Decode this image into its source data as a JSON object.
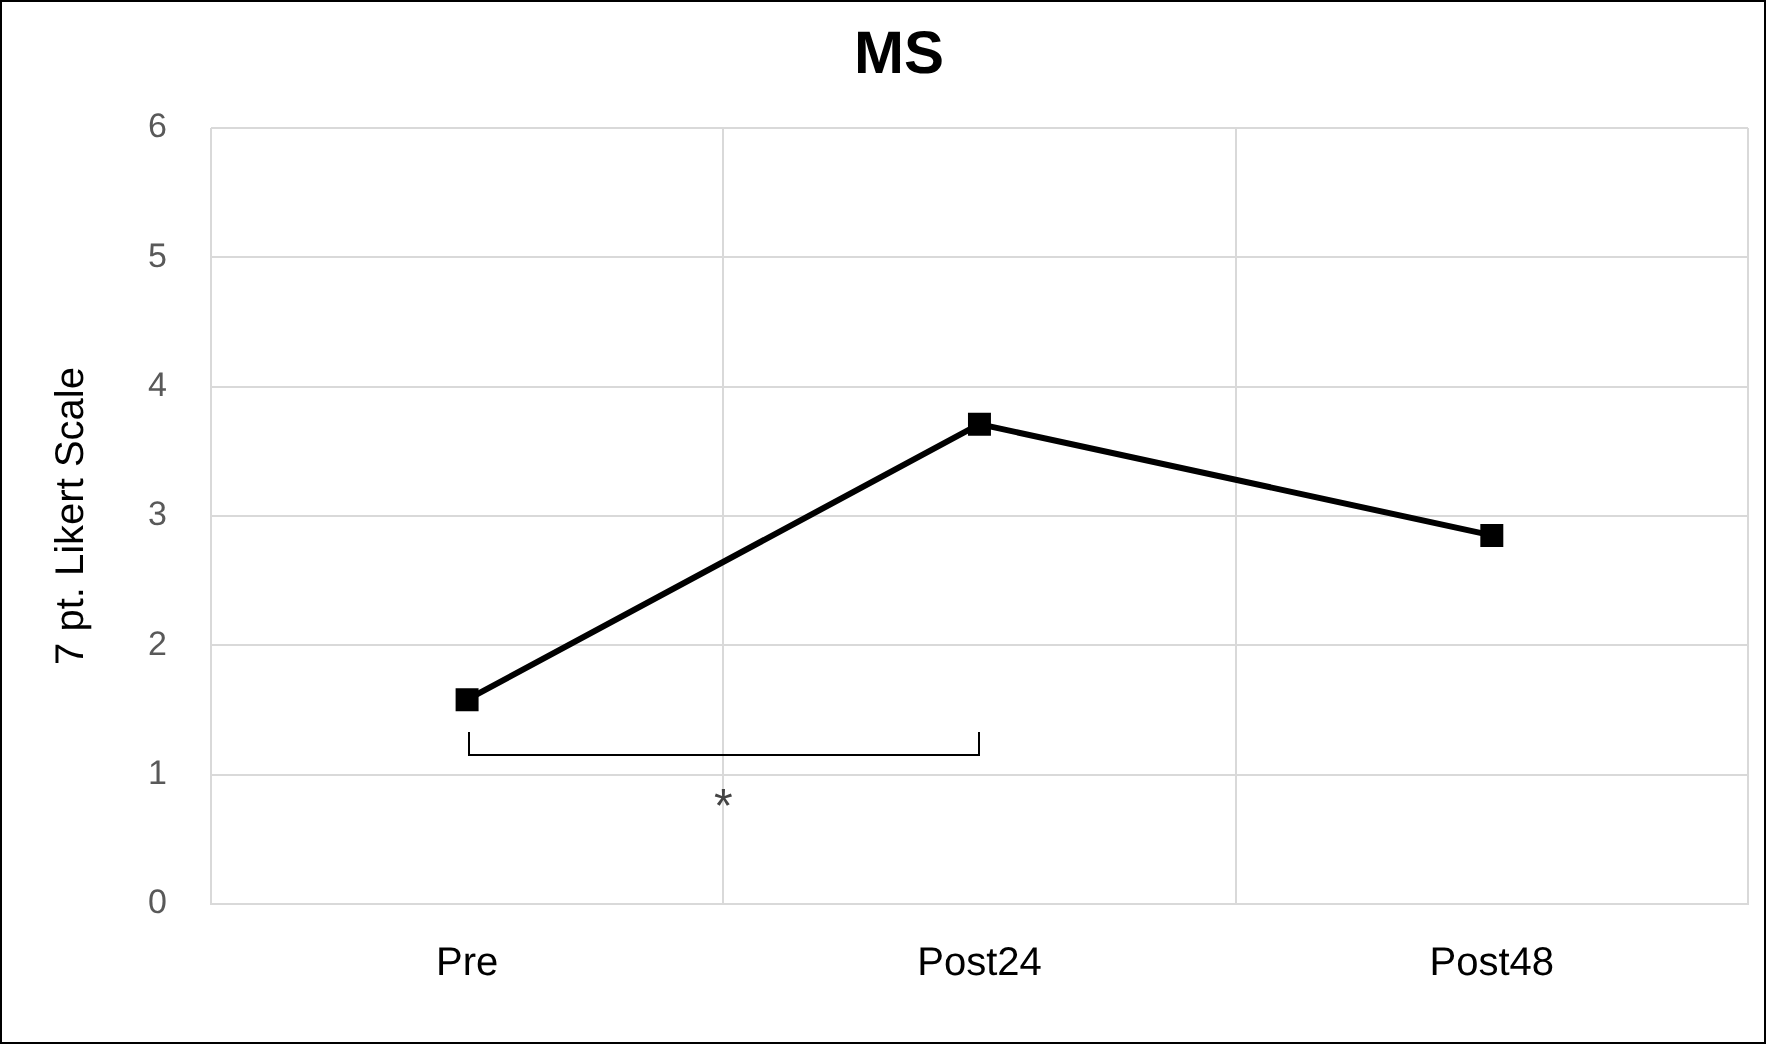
{
  "chart_data": {
    "type": "line",
    "title": "MS",
    "ylabel": "7 pt. Likert Scale",
    "categories": [
      "Pre",
      "Post24",
      "Post48"
    ],
    "series": [
      {
        "color": "#000000",
        "values": [
          1.58,
          3.71,
          2.85
        ]
      }
    ],
    "ylim": [
      0,
      6
    ],
    "yticks": [
      0,
      1,
      2,
      3,
      4,
      5,
      6
    ],
    "grid": true,
    "legend": false,
    "marker": "square",
    "line_style": "solid",
    "annotations": [
      "*"
    ]
  }
}
